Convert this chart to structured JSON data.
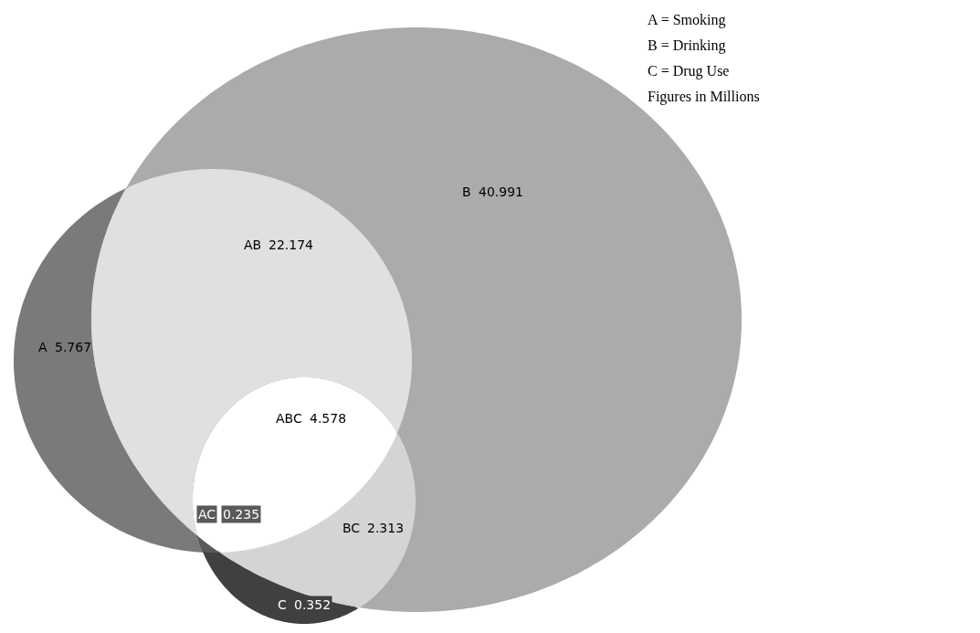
{
  "chart_data": {
    "type": "other",
    "categories": [
      "B",
      "A",
      "AB",
      "C",
      "AC",
      "BC",
      "ABC"
    ],
    "values": [
      40.991,
      5.767,
      22.174,
      0.352,
      0.235,
      2.313,
      4.578
    ],
    "colors": [
      "#ababab",
      "#7a7a7a",
      "#e0e0e0",
      "#404040",
      "#5a5a5a",
      "#d4d4d4",
      "#ffffff"
    ],
    "data_labels": true,
    "annotations": [
      "A = Smoking",
      "B = Drinking",
      "C = Drug Use",
      "Figures in Millions"
    ]
  }
}
